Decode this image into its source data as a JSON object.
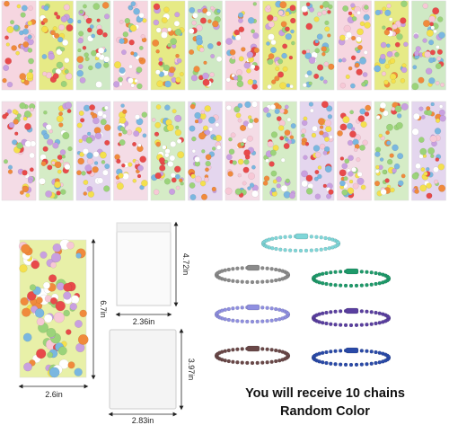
{
  "dimensions": {
    "sheet_height": "6.7in",
    "sheet_width": "2.6in",
    "small_bag_width": "2.36in",
    "small_bag_height": "4.72in",
    "large_bag_height": "3.97in",
    "large_bag_width": "2.83in"
  },
  "caption": {
    "line1": "You will receive 10 chains",
    "line2": "Random Color"
  }
}
